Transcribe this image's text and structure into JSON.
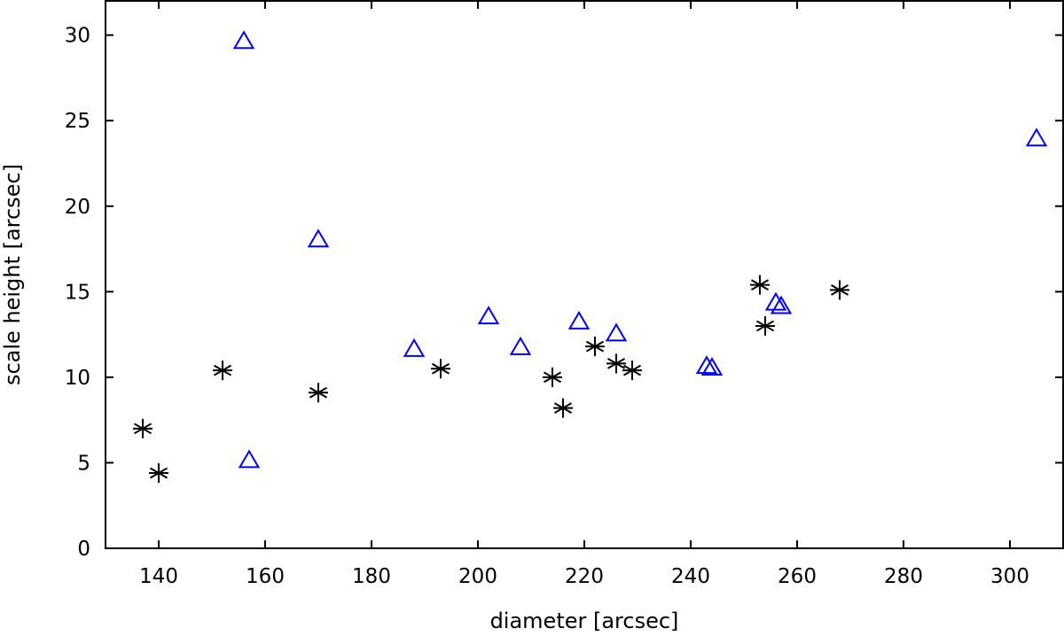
{
  "chart_data": {
    "type": "scatter",
    "title": "",
    "xlabel": "diameter [arcsec]",
    "ylabel": "scale height [arcsec]",
    "xlim": [
      130,
      310
    ],
    "ylim": [
      0,
      32
    ],
    "xticks": [
      140,
      160,
      180,
      200,
      220,
      240,
      260,
      280,
      300
    ],
    "yticks": [
      0,
      5,
      10,
      15,
      20,
      25,
      30
    ],
    "grid": false,
    "legend": "none",
    "series": [
      {
        "marker": "asterisk",
        "color": "#000000",
        "points": [
          {
            "x": 137,
            "y": 7.0
          },
          {
            "x": 140,
            "y": 4.4
          },
          {
            "x": 152,
            "y": 10.4
          },
          {
            "x": 170,
            "y": 9.1
          },
          {
            "x": 193,
            "y": 10.5
          },
          {
            "x": 214,
            "y": 10.0
          },
          {
            "x": 216,
            "y": 8.2
          },
          {
            "x": 222,
            "y": 11.8
          },
          {
            "x": 226,
            "y": 10.8
          },
          {
            "x": 229,
            "y": 10.4
          },
          {
            "x": 253,
            "y": 15.4
          },
          {
            "x": 254,
            "y": 13.0
          },
          {
            "x": 268,
            "y": 15.1
          }
        ]
      },
      {
        "marker": "triangle",
        "color": "#0000ff",
        "points": [
          {
            "x": 156,
            "y": 29.6
          },
          {
            "x": 157,
            "y": 5.1
          },
          {
            "x": 170,
            "y": 18.0
          },
          {
            "x": 188,
            "y": 11.6
          },
          {
            "x": 202,
            "y": 13.5
          },
          {
            "x": 208,
            "y": 11.7
          },
          {
            "x": 219,
            "y": 13.2
          },
          {
            "x": 226,
            "y": 12.5
          },
          {
            "x": 243,
            "y": 10.6
          },
          {
            "x": 244,
            "y": 10.5
          },
          {
            "x": 256,
            "y": 14.3
          },
          {
            "x": 257,
            "y": 14.1
          },
          {
            "x": 305,
            "y": 23.9
          }
        ]
      }
    ]
  }
}
